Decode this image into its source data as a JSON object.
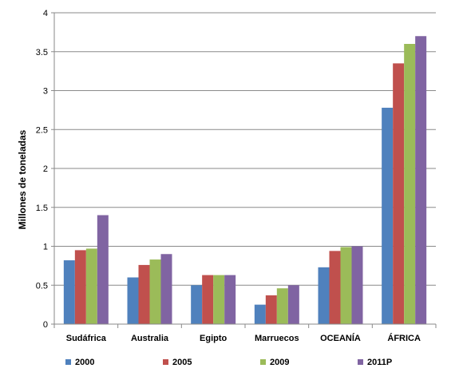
{
  "chart_data": {
    "type": "bar",
    "title": "",
    "xlabel": "",
    "ylabel": "Millones de toneladas",
    "ylim": [
      0,
      4
    ],
    "yticks": [
      0,
      0.5,
      1,
      1.5,
      2,
      2.5,
      3,
      3.5,
      4
    ],
    "ytick_labels": [
      "0",
      "0.5",
      "1",
      "1.5",
      "2",
      "2.5",
      "3",
      "3.5",
      "4"
    ],
    "grid": "horizontal",
    "legend_position": "bottom",
    "categories": [
      "Sudáfrica",
      "Australia",
      "Egipto",
      "Marruecos",
      "OCEANÍA",
      "ÁFRICA"
    ],
    "series": [
      {
        "name": "2000",
        "color": "#4F81BD",
        "values": [
          0.82,
          0.6,
          0.5,
          0.25,
          0.73,
          2.78
        ]
      },
      {
        "name": "2005",
        "color": "#C0504D",
        "values": [
          0.95,
          0.76,
          0.63,
          0.37,
          0.94,
          3.35
        ]
      },
      {
        "name": "2009",
        "color": "#9BBB59",
        "values": [
          0.97,
          0.83,
          0.63,
          0.46,
          0.99,
          3.6
        ]
      },
      {
        "name": "2011P",
        "color": "#8064A2",
        "values": [
          1.4,
          0.9,
          0.63,
          0.5,
          1.0,
          3.7
        ]
      }
    ]
  }
}
